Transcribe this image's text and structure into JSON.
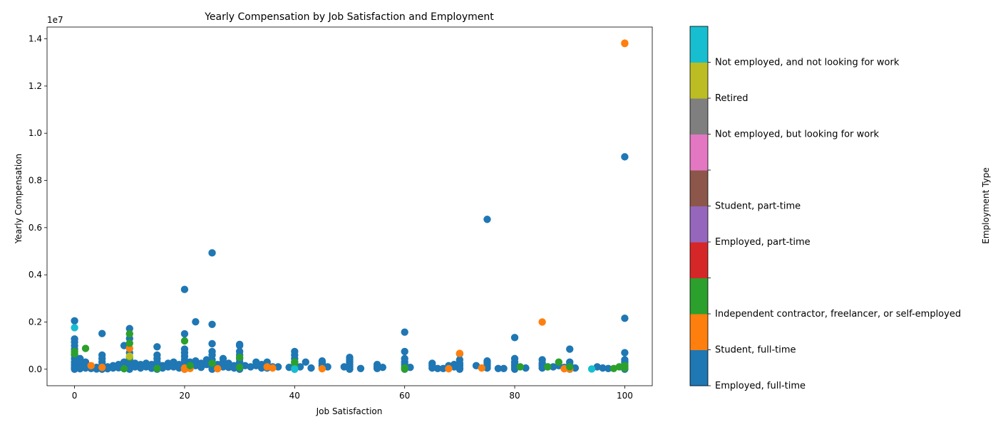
{
  "chart_data": {
    "type": "scatter",
    "title": "Yearly Compensation by Job Satisfaction and Employment",
    "xlabel": "Job Satisfaction",
    "ylabel": "Yearly Compensation",
    "offset_text": "1e7",
    "xlim": [
      -5,
      105
    ],
    "ylim": [
      -700000,
      14500000
    ],
    "x_ticks": [
      0,
      20,
      40,
      60,
      80,
      100
    ],
    "y_ticks": [
      0,
      2000000,
      4000000,
      6000000,
      8000000,
      10000000,
      12000000,
      14000000
    ],
    "y_tick_labels": [
      "0.0",
      "0.2",
      "0.4",
      "0.6",
      "0.8",
      "1.0",
      "1.2",
      "1.4"
    ],
    "grid": false,
    "colorbar": {
      "label": "Employment Type",
      "categories": [
        {
          "name": "Employed, full-time",
          "color": "#1f77b4"
        },
        {
          "name": "Student, full-time",
          "color": "#ff7f0e"
        },
        {
          "name": "Independent contractor, freelancer, or self-employed",
          "color": "#2ca02c"
        },
        {
          "name": "",
          "color": "#d62728"
        },
        {
          "name": "Employed, part-time",
          "color": "#9467bd"
        },
        {
          "name": "Student, part-time",
          "color": "#8c564b"
        },
        {
          "name": "",
          "color": "#e377c2"
        },
        {
          "name": "Not employed, but looking for work",
          "color": "#7f7f7f"
        },
        {
          "name": "Retired",
          "color": "#bcbd22"
        },
        {
          "name": "Not employed, and not looking for work",
          "color": "#17becf"
        }
      ]
    },
    "series": [
      {
        "category": 0,
        "points": [
          [
            0,
            2050000
          ],
          [
            0,
            1280000
          ],
          [
            0,
            1150000
          ],
          [
            0,
            1000000
          ],
          [
            0,
            850000
          ],
          [
            0,
            600000
          ],
          [
            0,
            450000
          ],
          [
            0,
            300000
          ],
          [
            0,
            200000
          ],
          [
            0,
            100000
          ],
          [
            0,
            50000
          ],
          [
            0,
            0
          ],
          [
            1,
            450000
          ],
          [
            1,
            250000
          ],
          [
            1,
            100000
          ],
          [
            1,
            20000
          ],
          [
            2,
            300000
          ],
          [
            2,
            150000
          ],
          [
            2,
            50000
          ],
          [
            3,
            100000
          ],
          [
            3,
            30000
          ],
          [
            4,
            80000
          ],
          [
            4,
            10000
          ],
          [
            5,
            1510000
          ],
          [
            5,
            600000
          ],
          [
            5,
            450000
          ],
          [
            5,
            300000
          ],
          [
            5,
            150000
          ],
          [
            5,
            50000
          ],
          [
            5,
            0
          ],
          [
            6,
            100000
          ],
          [
            6,
            20000
          ],
          [
            7,
            150000
          ],
          [
            7,
            50000
          ],
          [
            8,
            200000
          ],
          [
            8,
            60000
          ],
          [
            9,
            1000000
          ],
          [
            9,
            300000
          ],
          [
            9,
            100000
          ],
          [
            10,
            1720000
          ],
          [
            10,
            1300000
          ],
          [
            10,
            700000
          ],
          [
            10,
            400000
          ],
          [
            10,
            200000
          ],
          [
            10,
            80000
          ],
          [
            10,
            0
          ],
          [
            11,
            250000
          ],
          [
            11,
            100000
          ],
          [
            12,
            200000
          ],
          [
            12,
            50000
          ],
          [
            13,
            250000
          ],
          [
            13,
            100000
          ],
          [
            14,
            200000
          ],
          [
            14,
            40000
          ],
          [
            15,
            950000
          ],
          [
            15,
            600000
          ],
          [
            15,
            450000
          ],
          [
            15,
            300000
          ],
          [
            15,
            150000
          ],
          [
            15,
            50000
          ],
          [
            15,
            0
          ],
          [
            16,
            150000
          ],
          [
            16,
            50000
          ],
          [
            17,
            250000
          ],
          [
            17,
            100000
          ],
          [
            18,
            300000
          ],
          [
            18,
            100000
          ],
          [
            19,
            200000
          ],
          [
            19,
            50000
          ],
          [
            20,
            3380000
          ],
          [
            20,
            1500000
          ],
          [
            20,
            850000
          ],
          [
            20,
            700000
          ],
          [
            20,
            550000
          ],
          [
            20,
            400000
          ],
          [
            20,
            300000
          ],
          [
            20,
            150000
          ],
          [
            20,
            50000
          ],
          [
            20,
            0
          ],
          [
            21,
            300000
          ],
          [
            21,
            100000
          ],
          [
            22,
            2010000
          ],
          [
            22,
            350000
          ],
          [
            22,
            150000
          ],
          [
            23,
            250000
          ],
          [
            23,
            80000
          ],
          [
            24,
            400000
          ],
          [
            24,
            200000
          ],
          [
            25,
            4930000
          ],
          [
            25,
            1900000
          ],
          [
            25,
            1080000
          ],
          [
            25,
            750000
          ],
          [
            25,
            600000
          ],
          [
            25,
            400000
          ],
          [
            25,
            250000
          ],
          [
            25,
            100000
          ],
          [
            25,
            0
          ],
          [
            26,
            200000
          ],
          [
            26,
            60000
          ],
          [
            27,
            450000
          ],
          [
            27,
            300000
          ],
          [
            27,
            100000
          ],
          [
            28,
            250000
          ],
          [
            28,
            80000
          ],
          [
            29,
            150000
          ],
          [
            29,
            50000
          ],
          [
            30,
            1050000
          ],
          [
            30,
            1000000
          ],
          [
            30,
            750000
          ],
          [
            30,
            600000
          ],
          [
            30,
            450000
          ],
          [
            30,
            300000
          ],
          [
            30,
            150000
          ],
          [
            30,
            50000
          ],
          [
            30,
            0
          ],
          [
            31,
            150000
          ],
          [
            32,
            100000
          ],
          [
            33,
            300000
          ],
          [
            33,
            150000
          ],
          [
            34,
            200000
          ],
          [
            34,
            50000
          ],
          [
            35,
            300000
          ],
          [
            35,
            150000
          ],
          [
            35,
            50000
          ],
          [
            36,
            100000
          ],
          [
            37,
            100000
          ],
          [
            39,
            80000
          ],
          [
            40,
            750000
          ],
          [
            40,
            600000
          ],
          [
            40,
            450000
          ],
          [
            40,
            300000
          ],
          [
            40,
            200000
          ],
          [
            40,
            100000
          ],
          [
            40,
            0
          ],
          [
            41,
            100000
          ],
          [
            42,
            300000
          ],
          [
            43,
            50000
          ],
          [
            45,
            350000
          ],
          [
            45,
            250000
          ],
          [
            45,
            150000
          ],
          [
            45,
            50000
          ],
          [
            46,
            100000
          ],
          [
            49,
            100000
          ],
          [
            50,
            500000
          ],
          [
            50,
            400000
          ],
          [
            50,
            300000
          ],
          [
            50,
            200000
          ],
          [
            50,
            100000
          ],
          [
            50,
            0
          ],
          [
            52,
            30000
          ],
          [
            55,
            200000
          ],
          [
            55,
            100000
          ],
          [
            55,
            30000
          ],
          [
            56,
            80000
          ],
          [
            60,
            1570000
          ],
          [
            60,
            750000
          ],
          [
            60,
            450000
          ],
          [
            60,
            300000
          ],
          [
            60,
            200000
          ],
          [
            60,
            100000
          ],
          [
            60,
            0
          ],
          [
            61,
            80000
          ],
          [
            65,
            250000
          ],
          [
            65,
            150000
          ],
          [
            65,
            50000
          ],
          [
            66,
            30000
          ],
          [
            67,
            30000
          ],
          [
            68,
            150000
          ],
          [
            69,
            200000
          ],
          [
            69,
            100000
          ],
          [
            70,
            650000
          ],
          [
            70,
            400000
          ],
          [
            70,
            250000
          ],
          [
            70,
            150000
          ],
          [
            70,
            50000
          ],
          [
            70,
            0
          ],
          [
            73,
            150000
          ],
          [
            75,
            6350000
          ],
          [
            75,
            350000
          ],
          [
            75,
            250000
          ],
          [
            75,
            150000
          ],
          [
            75,
            50000
          ],
          [
            77,
            30000
          ],
          [
            78,
            30000
          ],
          [
            80,
            1340000
          ],
          [
            80,
            450000
          ],
          [
            80,
            300000
          ],
          [
            80,
            200000
          ],
          [
            80,
            100000
          ],
          [
            80,
            0
          ],
          [
            82,
            50000
          ],
          [
            85,
            400000
          ],
          [
            85,
            250000
          ],
          [
            85,
            150000
          ],
          [
            85,
            50000
          ],
          [
            86,
            100000
          ],
          [
            87,
            100000
          ],
          [
            88,
            150000
          ],
          [
            89,
            80000
          ],
          [
            90,
            850000
          ],
          [
            90,
            300000
          ],
          [
            90,
            200000
          ],
          [
            90,
            100000
          ],
          [
            90,
            0
          ],
          [
            91,
            50000
          ],
          [
            95,
            100000
          ],
          [
            96,
            50000
          ],
          [
            97,
            30000
          ],
          [
            100,
            9000000
          ],
          [
            100,
            2160000
          ],
          [
            100,
            700000
          ],
          [
            100,
            400000
          ],
          [
            100,
            300000
          ],
          [
            100,
            200000
          ],
          [
            100,
            100000
          ],
          [
            100,
            0
          ]
        ]
      },
      {
        "category": 1,
        "points": [
          [
            3,
            150000
          ],
          [
            5,
            80000
          ],
          [
            10,
            880000
          ],
          [
            20,
            50000
          ],
          [
            20,
            0
          ],
          [
            21,
            30000
          ],
          [
            26,
            20000
          ],
          [
            35,
            100000
          ],
          [
            36,
            50000
          ],
          [
            45,
            20000
          ],
          [
            68,
            20000
          ],
          [
            70,
            670000
          ],
          [
            74,
            50000
          ],
          [
            85,
            2000000
          ],
          [
            89,
            20000
          ],
          [
            90,
            10000
          ],
          [
            100,
            13820000
          ],
          [
            100,
            13800000
          ]
        ]
      },
      {
        "category": 2,
        "points": [
          [
            0,
            750000
          ],
          [
            0,
            650000
          ],
          [
            2,
            880000
          ],
          [
            9,
            20000
          ],
          [
            10,
            1500000
          ],
          [
            10,
            1100000
          ],
          [
            10,
            500000
          ],
          [
            15,
            30000
          ],
          [
            20,
            1200000
          ],
          [
            21,
            150000
          ],
          [
            25,
            250000
          ],
          [
            30,
            500000
          ],
          [
            30,
            80000
          ],
          [
            40,
            300000
          ],
          [
            40,
            100000
          ],
          [
            60,
            50000
          ],
          [
            60,
            10000
          ],
          [
            81,
            100000
          ],
          [
            86,
            100000
          ],
          [
            88,
            300000
          ],
          [
            90,
            100000
          ],
          [
            98,
            30000
          ],
          [
            99,
            100000
          ],
          [
            100,
            150000
          ],
          [
            100,
            50000
          ]
        ]
      },
      {
        "category": 8,
        "points": [
          [
            10,
            550000
          ]
        ]
      },
      {
        "category": 9,
        "points": [
          [
            0,
            1760000
          ],
          [
            40,
            10000
          ],
          [
            94,
            10000
          ]
        ]
      }
    ]
  }
}
